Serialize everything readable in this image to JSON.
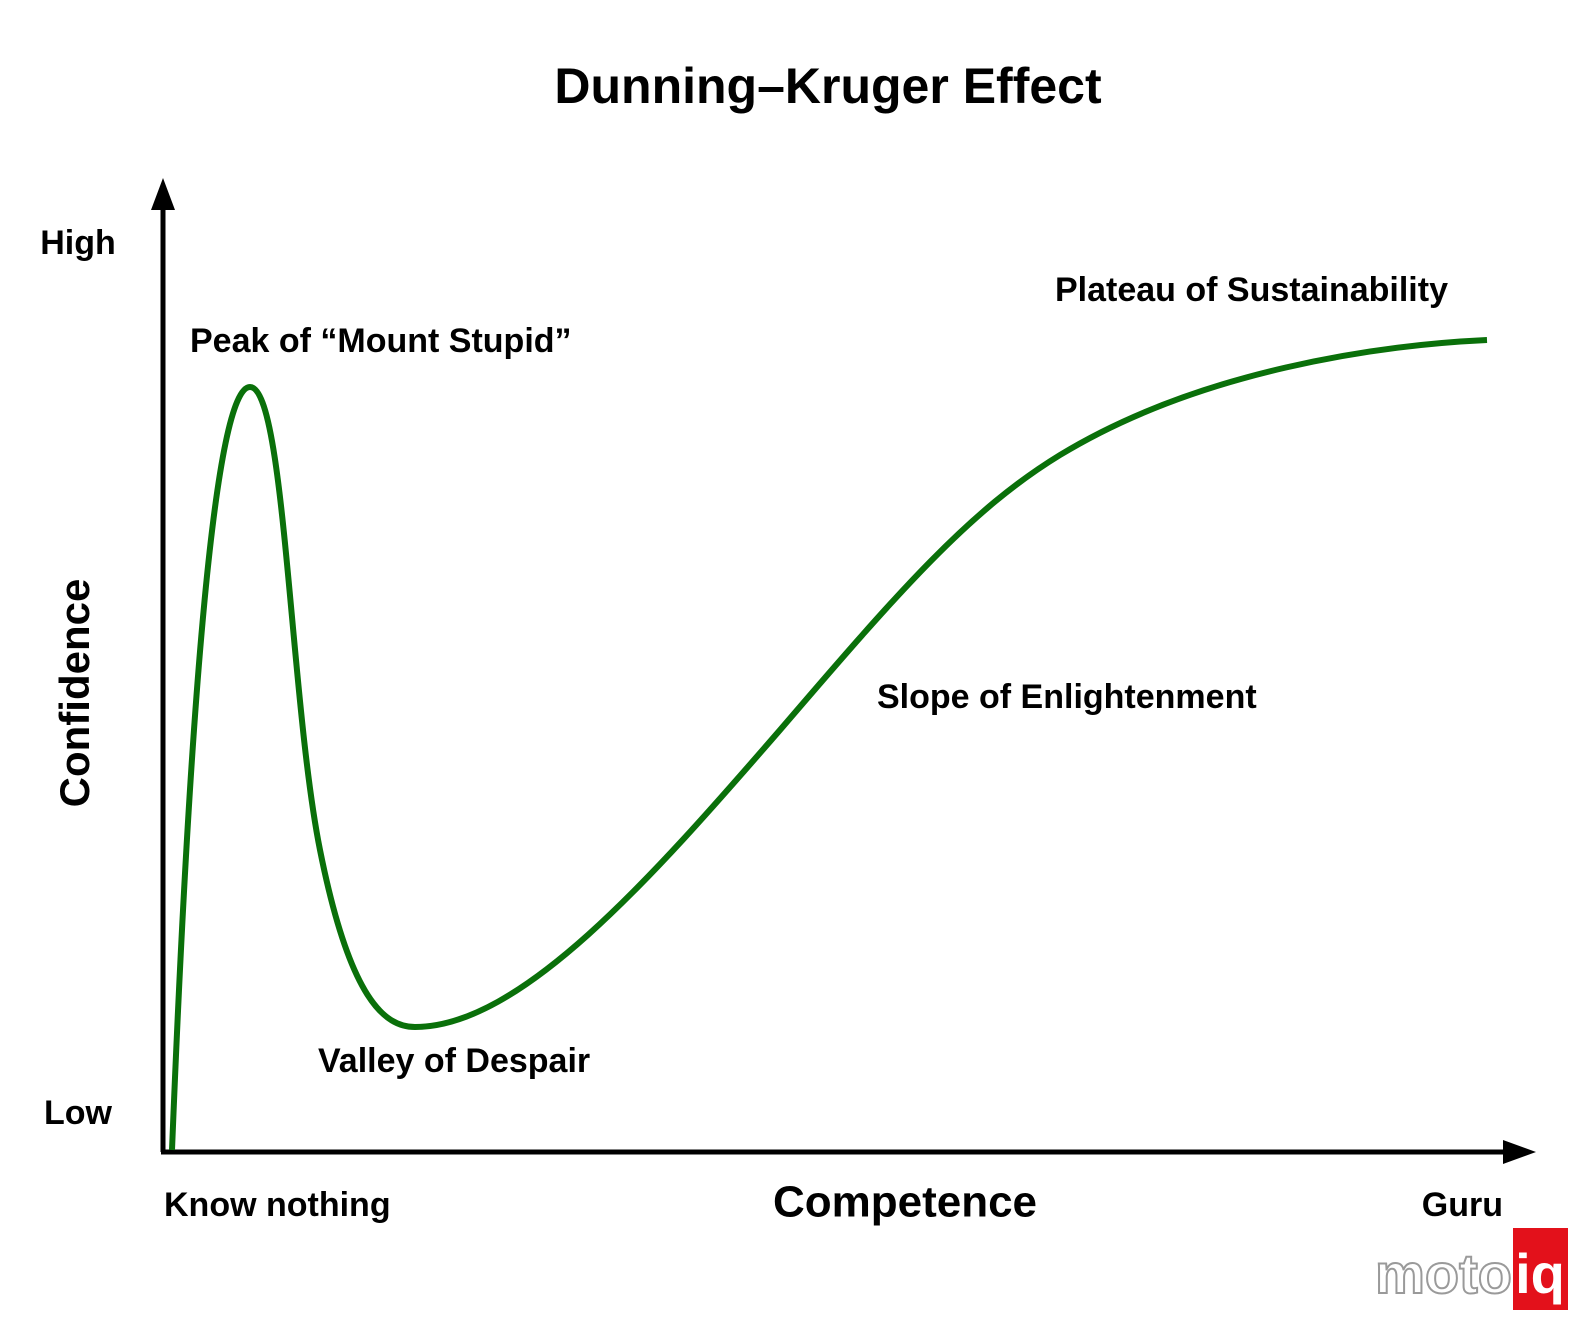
{
  "title": "Dunning–Kruger Effect",
  "y_axis": {
    "label": "Confidence",
    "high": "High",
    "low": "Low"
  },
  "x_axis": {
    "label": "Competence",
    "start": "Know nothing",
    "end": "Guru"
  },
  "annotations": [
    "Peak of “Mount Stupid”",
    "Valley of Despair",
    "Slope of Enlightenment",
    "Plateau of Sustainability"
  ],
  "watermark": {
    "left": "moto",
    "right": "iq"
  }
}
